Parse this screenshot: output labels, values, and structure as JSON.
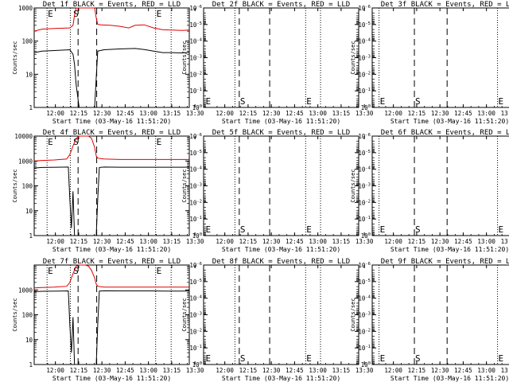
{
  "colors": {
    "events": "#000000",
    "lld": "#e00000",
    "axis": "#000000",
    "background": "#ffffff"
  },
  "start_label": "Start Time (03-May-16 11:51:20)",
  "ylabel": "Counts/sec",
  "xticks": [
    "12:00",
    "12:15",
    "12:30",
    "12:45",
    "13:00",
    "13:15",
    "13:30"
  ],
  "marker_letters": {
    "E": "E",
    "S": "S"
  },
  "chart_data": [
    {
      "type": "line",
      "title": "Det 1f BLACK = Events, RED = LLD",
      "xlabel": "Start Time (03-May-16 11:51:20)",
      "ylabel": "Counts/sec",
      "xlim_minutes": [
        -5,
        95
      ],
      "yscale": "log",
      "ylim": [
        1,
        1000
      ],
      "yticks": [
        {
          "v": 1,
          "label": "1"
        },
        {
          "v": 10,
          "label": "10"
        },
        {
          "v": 100,
          "label": "100"
        },
        {
          "v": 1000,
          "label": "1000"
        }
      ],
      "markers": {
        "dotted_min": [
          3.3,
          18.3,
          73.3,
          83.3
        ],
        "dashed_min": [
          23.3,
          35.3
        ],
        "E_min": [
          3.3,
          73.3
        ],
        "S_min": 23.3
      },
      "series": [
        {
          "name": "LLD",
          "color": "red",
          "x_min": [
            -5,
            0,
            8,
            18,
            20,
            21,
            22,
            24,
            26,
            28,
            30,
            32,
            34,
            35,
            36,
            38,
            44,
            50,
            56,
            60,
            66,
            72,
            78,
            84,
            90,
            95
          ],
          "y": [
            200,
            230,
            240,
            250,
            300,
            600,
            1000,
            1000,
            1000,
            1000,
            1000,
            1000,
            1000,
            500,
            320,
            310,
            300,
            280,
            250,
            300,
            310,
            250,
            220,
            215,
            210,
            215
          ]
        },
        {
          "name": "Events",
          "color": "black",
          "x_min": [
            -5,
            0,
            8,
            18,
            20,
            21,
            22,
            24,
            26,
            28,
            30,
            32,
            34,
            35,
            36,
            40,
            50,
            60,
            66,
            72,
            78,
            84,
            90,
            95
          ],
          "y": [
            45,
            50,
            52,
            55,
            40,
            20,
            5,
            1,
            1,
            1,
            1,
            1,
            1,
            8,
            50,
            55,
            58,
            60,
            56,
            50,
            45,
            45,
            44,
            46
          ]
        }
      ]
    },
    {
      "type": "line",
      "title": "Det 2f BLACK = Events, RED = LLD",
      "xlabel": "Start Time (03-May-16 11:51:20)",
      "ylabel": "Counts/sec",
      "xlim_minutes": [
        -5,
        95
      ],
      "yscale": "log",
      "ylim": [
        1,
        1e-06
      ],
      "yticks": [
        {
          "v": 1,
          "label": "10^0"
        },
        {
          "v": 0.1,
          "label": "10^-1"
        },
        {
          "v": 0.01,
          "label": "10^-2"
        },
        {
          "v": 0.001,
          "label": "10^-3"
        },
        {
          "v": 0.0001,
          "label": "10^-4"
        },
        {
          "v": 1e-05,
          "label": "10^-5"
        },
        {
          "v": 1e-06,
          "label": "10^-6"
        }
      ],
      "markers": {
        "dotted_min": [
          15.2,
          60.8,
          70.4
        ],
        "dashed_min": [
          18.0,
          37.6
        ],
        "E_min": [
          -4.2,
          60.8
        ],
        "S_min": 18.0
      },
      "series": []
    },
    {
      "type": "line",
      "title": "Det 3f BLACK = Events, RED = LLD",
      "xlabel": "Start Time (03-May-16 11:51:20)",
      "ylabel": "Counts/sec",
      "xlim_minutes": [
        -5,
        95
      ],
      "yscale": "log",
      "ylim": [
        1,
        1e-06
      ],
      "yticks": [
        {
          "v": 1,
          "label": "10^0"
        },
        {
          "v": 0.1,
          "label": "10^-1"
        },
        {
          "v": 0.01,
          "label": "10^-2"
        },
        {
          "v": 0.001,
          "label": "10^-3"
        },
        {
          "v": 0.0001,
          "label": "10^-4"
        },
        {
          "v": 1e-05,
          "label": "10^-5"
        },
        {
          "v": 1e-06,
          "label": "10^-6"
        }
      ],
      "markers": {
        "dotted_min": [
          -0.6,
          75.8,
          89.3
        ],
        "dashed_min": [
          22.2,
          43.3
        ],
        "E_min": [
          -0.6,
          75.8
        ],
        "S_min": 22.2
      },
      "series": []
    },
    {
      "type": "line",
      "title": "Det 4f BLACK = Events, RED = LLD",
      "xlabel": "Start Time (03-May-16 11:51:20)",
      "ylabel": "Counts/sec",
      "xlim_minutes": [
        -5,
        95
      ],
      "yscale": "log",
      "ylim": [
        1,
        10000
      ],
      "yticks": [
        {
          "v": 1,
          "label": "1"
        },
        {
          "v": 10,
          "label": "10"
        },
        {
          "v": 100,
          "label": "100"
        },
        {
          "v": 1000,
          "label": "1000"
        },
        {
          "v": 10000,
          "label": "10000"
        }
      ],
      "markers": {
        "dotted_min": [
          3.3,
          18.3,
          73.3,
          83.3
        ],
        "dashed_min": [
          23.3,
          35.3
        ],
        "E_min": [
          3.3,
          73.3
        ],
        "S_min": 23.3
      },
      "series": [
        {
          "name": "LLD",
          "color": "red",
          "x_min": [
            -5,
            0,
            8,
            16,
            18,
            20,
            22,
            24,
            26,
            28,
            30,
            32,
            34,
            35,
            36,
            40,
            50,
            60,
            70,
            80,
            90,
            95
          ],
          "y": [
            1000,
            1050,
            1100,
            1200,
            1800,
            4000,
            8000,
            10000,
            10000,
            10000,
            10000,
            8000,
            3500,
            1600,
            1300,
            1200,
            1150,
            1150,
            1150,
            1150,
            1150,
            1150
          ]
        },
        {
          "name": "Events",
          "color": "black",
          "x_min": [
            -5,
            0,
            10,
            17,
            18,
            19,
            20,
            21,
            24,
            28,
            32,
            35,
            36,
            37,
            40,
            50,
            60,
            70,
            80,
            90,
            95
          ],
          "y": [
            520,
            550,
            560,
            570,
            30,
            2,
            60,
            1,
            1,
            1,
            1,
            1,
            30,
            550,
            570,
            560,
            560,
            560,
            560,
            560,
            565
          ]
        }
      ]
    },
    {
      "type": "line",
      "title": "Det 5f BLACK = Events, RED = LLD",
      "xlabel": "Start Time (03-May-16 11:51:20)",
      "ylabel": "Counts/sec",
      "xlim_minutes": [
        -5,
        95
      ],
      "yscale": "log",
      "ylim": [
        1,
        1e-06
      ],
      "yticks": [
        {
          "v": 1,
          "label": "10^0"
        },
        {
          "v": 0.1,
          "label": "10^-1"
        },
        {
          "v": 0.01,
          "label": "10^-2"
        },
        {
          "v": 0.001,
          "label": "10^-3"
        },
        {
          "v": 0.0001,
          "label": "10^-4"
        },
        {
          "v": 1e-05,
          "label": "10^-5"
        },
        {
          "v": 1e-06,
          "label": "10^-6"
        }
      ],
      "markers": {
        "dotted_min": [
          15.2,
          60.8,
          70.4
        ],
        "dashed_min": [
          18.0,
          37.6
        ],
        "E_min": [
          -4.2,
          60.8
        ],
        "S_min": 18.0
      },
      "series": []
    },
    {
      "type": "line",
      "title": "Det 6f BLACK = Events, RED = LLD",
      "xlabel": "Start Time (03-May-16 11:51:20)",
      "ylabel": "Counts/sec",
      "xlim_minutes": [
        -5,
        95
      ],
      "yscale": "log",
      "ylim": [
        1,
        1e-06
      ],
      "yticks": [
        {
          "v": 1,
          "label": "10^0"
        },
        {
          "v": 0.1,
          "label": "10^-1"
        },
        {
          "v": 0.01,
          "label": "10^-2"
        },
        {
          "v": 0.001,
          "label": "10^-3"
        },
        {
          "v": 0.0001,
          "label": "10^-4"
        },
        {
          "v": 1e-05,
          "label": "10^-5"
        },
        {
          "v": 1e-06,
          "label": "10^-6"
        }
      ],
      "markers": {
        "dotted_min": [
          -0.6,
          75.8,
          89.3
        ],
        "dashed_min": [
          22.2,
          43.3
        ],
        "E_min": [
          -0.6,
          75.8
        ],
        "S_min": 22.2
      },
      "series": []
    },
    {
      "type": "line",
      "title": "Det 7f BLACK = Events, RED = LLD",
      "xlabel": "Start Time (03-May-16 11:51:20)",
      "ylabel": "Counts/sec",
      "xlim_minutes": [
        -5,
        95
      ],
      "yscale": "log",
      "ylim": [
        1,
        10000
      ],
      "yticks": [
        {
          "v": 1,
          "label": "1"
        },
        {
          "v": 10,
          "label": "10"
        },
        {
          "v": 100,
          "label": "100"
        },
        {
          "v": 1000,
          "label": "1000"
        }
      ],
      "markers": {
        "dotted_min": [
          3.3,
          18.3,
          73.3,
          83.3
        ],
        "dashed_min": [
          23.3,
          35.3
        ],
        "E_min": [
          3.3,
          73.3
        ],
        "S_min": 23.3
      },
      "series": [
        {
          "name": "LLD",
          "color": "red",
          "x_min": [
            -5,
            0,
            8,
            16,
            18,
            20,
            22,
            24,
            26,
            28,
            30,
            32,
            34,
            35,
            36,
            40,
            50,
            60,
            70,
            80,
            90,
            95
          ],
          "y": [
            1200,
            1250,
            1300,
            1400,
            2000,
            4500,
            9000,
            10000,
            10000,
            10000,
            9000,
            6000,
            3000,
            1700,
            1400,
            1300,
            1300,
            1300,
            1300,
            1300,
            1300,
            1300
          ]
        },
        {
          "name": "Events",
          "color": "black",
          "x_min": [
            -5,
            0,
            10,
            17,
            18,
            19,
            20,
            21,
            24,
            28,
            32,
            35,
            36,
            37,
            40,
            50,
            60,
            70,
            80,
            90,
            95
          ],
          "y": [
            850,
            880,
            900,
            910,
            40,
            3,
            80,
            1,
            1,
            1,
            1,
            1,
            40,
            900,
            920,
            910,
            910,
            910,
            900,
            900,
            910
          ]
        }
      ]
    },
    {
      "type": "line",
      "title": "Det 8f BLACK = Events, RED = LLD",
      "xlabel": "Start Time (03-May-16 11:51:20)",
      "ylabel": "Counts/sec",
      "xlim_minutes": [
        -5,
        95
      ],
      "yscale": "log",
      "ylim": [
        1,
        1e-06
      ],
      "yticks": [
        {
          "v": 1,
          "label": "10^0"
        },
        {
          "v": 0.1,
          "label": "10^-1"
        },
        {
          "v": 0.01,
          "label": "10^-2"
        },
        {
          "v": 0.001,
          "label": "10^-3"
        },
        {
          "v": 0.0001,
          "label": "10^-4"
        },
        {
          "v": 1e-05,
          "label": "10^-5"
        },
        {
          "v": 1e-06,
          "label": "10^-6"
        }
      ],
      "markers": {
        "dotted_min": [
          15.2,
          60.8,
          70.4
        ],
        "dashed_min": [
          18.0,
          37.6
        ],
        "E_min": [
          -4.2,
          60.8
        ],
        "S_min": 18.0
      },
      "series": []
    },
    {
      "type": "line",
      "title": "Det 9f BLACK = Events, RED = LLD",
      "xlabel": "Start Time (03-May-16 11:51:20)",
      "ylabel": "Counts/sec",
      "xlim_minutes": [
        -5,
        95
      ],
      "yscale": "log",
      "ylim": [
        1,
        1e-06
      ],
      "yticks": [
        {
          "v": 1,
          "label": "10^0"
        },
        {
          "v": 0.1,
          "label": "10^-1"
        },
        {
          "v": 0.01,
          "label": "10^-2"
        },
        {
          "v": 0.001,
          "label": "10^-3"
        },
        {
          "v": 0.0001,
          "label": "10^-4"
        },
        {
          "v": 1e-05,
          "label": "10^-5"
        },
        {
          "v": 1e-06,
          "label": "10^-6"
        }
      ],
      "markers": {
        "dotted_min": [
          -0.6,
          75.8,
          89.3
        ],
        "dashed_min": [
          22.2,
          43.3
        ],
        "E_min": [
          -0.6,
          75.8
        ],
        "S_min": 22.2
      },
      "series": []
    }
  ]
}
